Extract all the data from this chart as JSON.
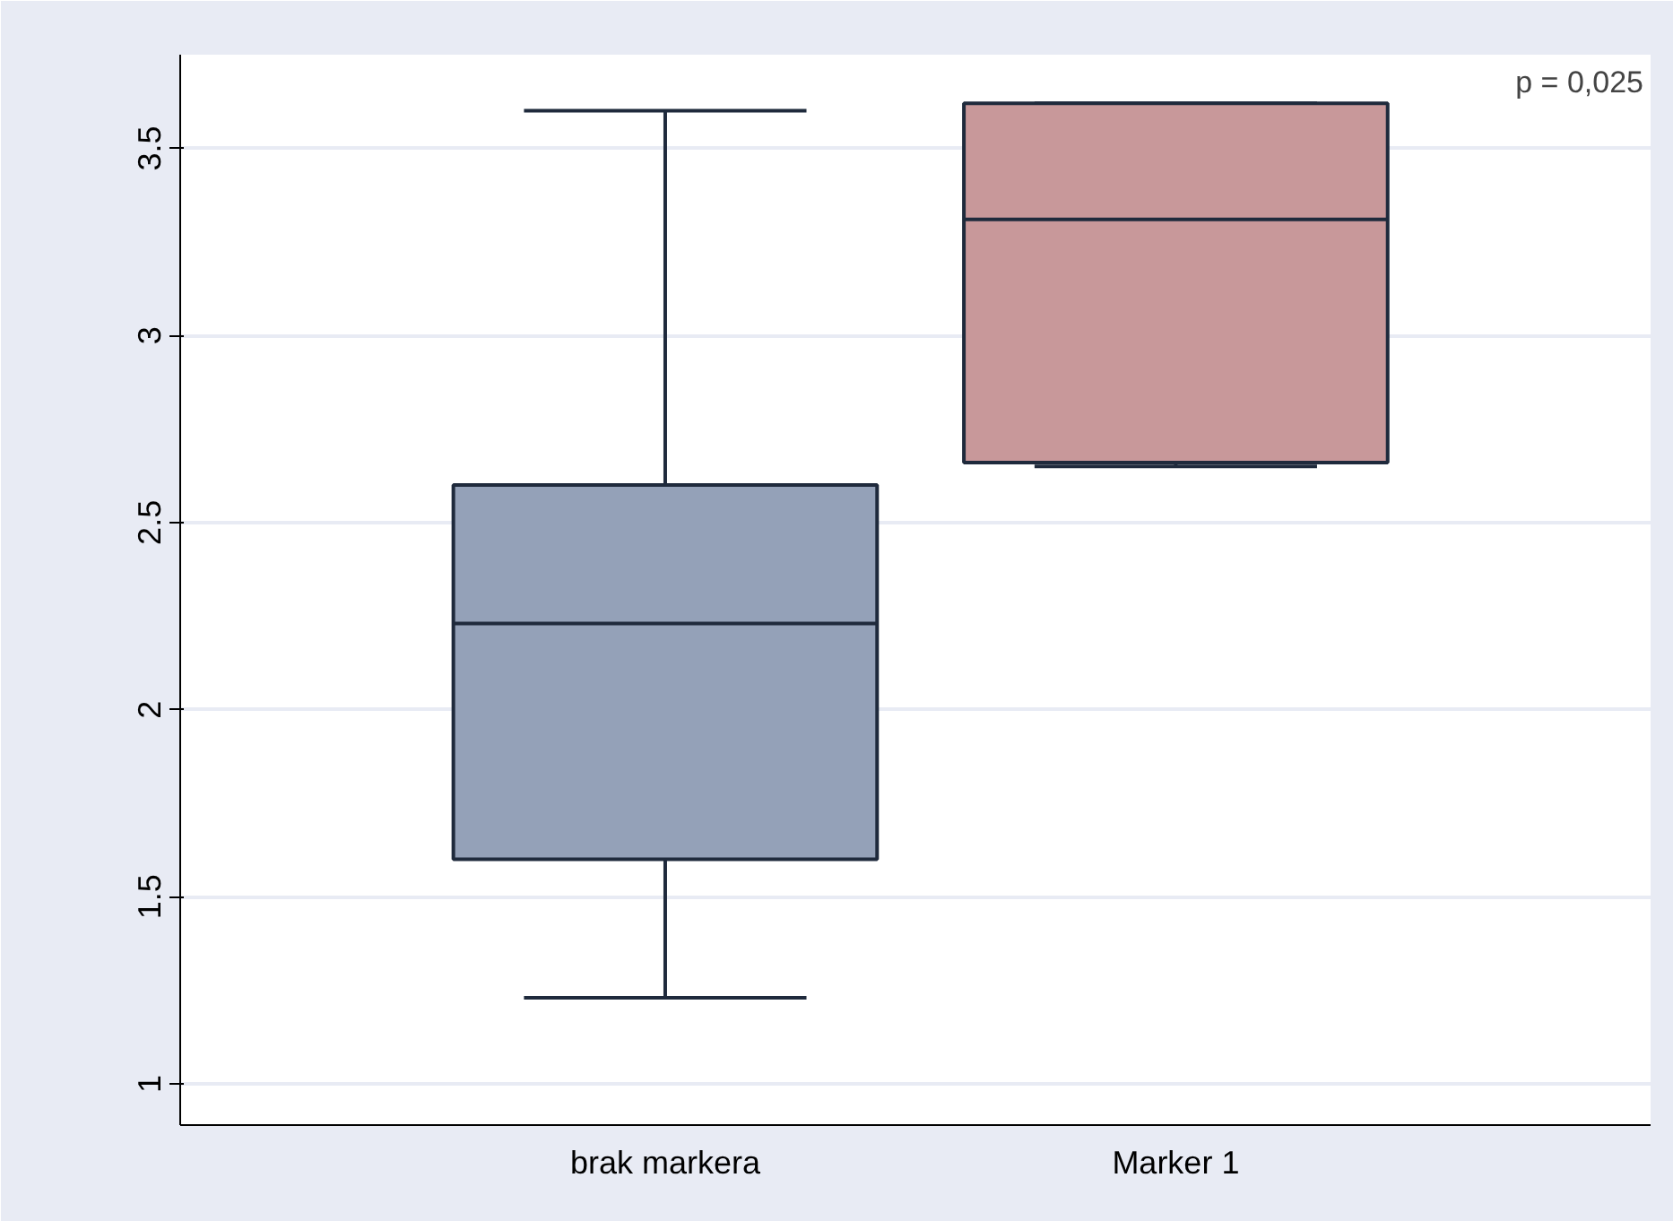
{
  "chart_data": {
    "type": "box",
    "categories": [
      "brak markera",
      "Marker 1"
    ],
    "boxes": [
      {
        "low": 1.23,
        "q1": 1.6,
        "median": 2.23,
        "q3": 2.6,
        "high": 3.6
      },
      {
        "low": 2.65,
        "q1": 2.66,
        "median": 3.31,
        "q3": 3.62,
        "high": 3.62
      }
    ],
    "colors": [
      "#94a1b8",
      "#c8989a"
    ],
    "ylim": [
      0.89,
      3.75
    ],
    "yticks": [
      1,
      1.5,
      2,
      2.5,
      3,
      3.5
    ],
    "grid": "y",
    "annotations": [
      "p = 0,025"
    ]
  }
}
